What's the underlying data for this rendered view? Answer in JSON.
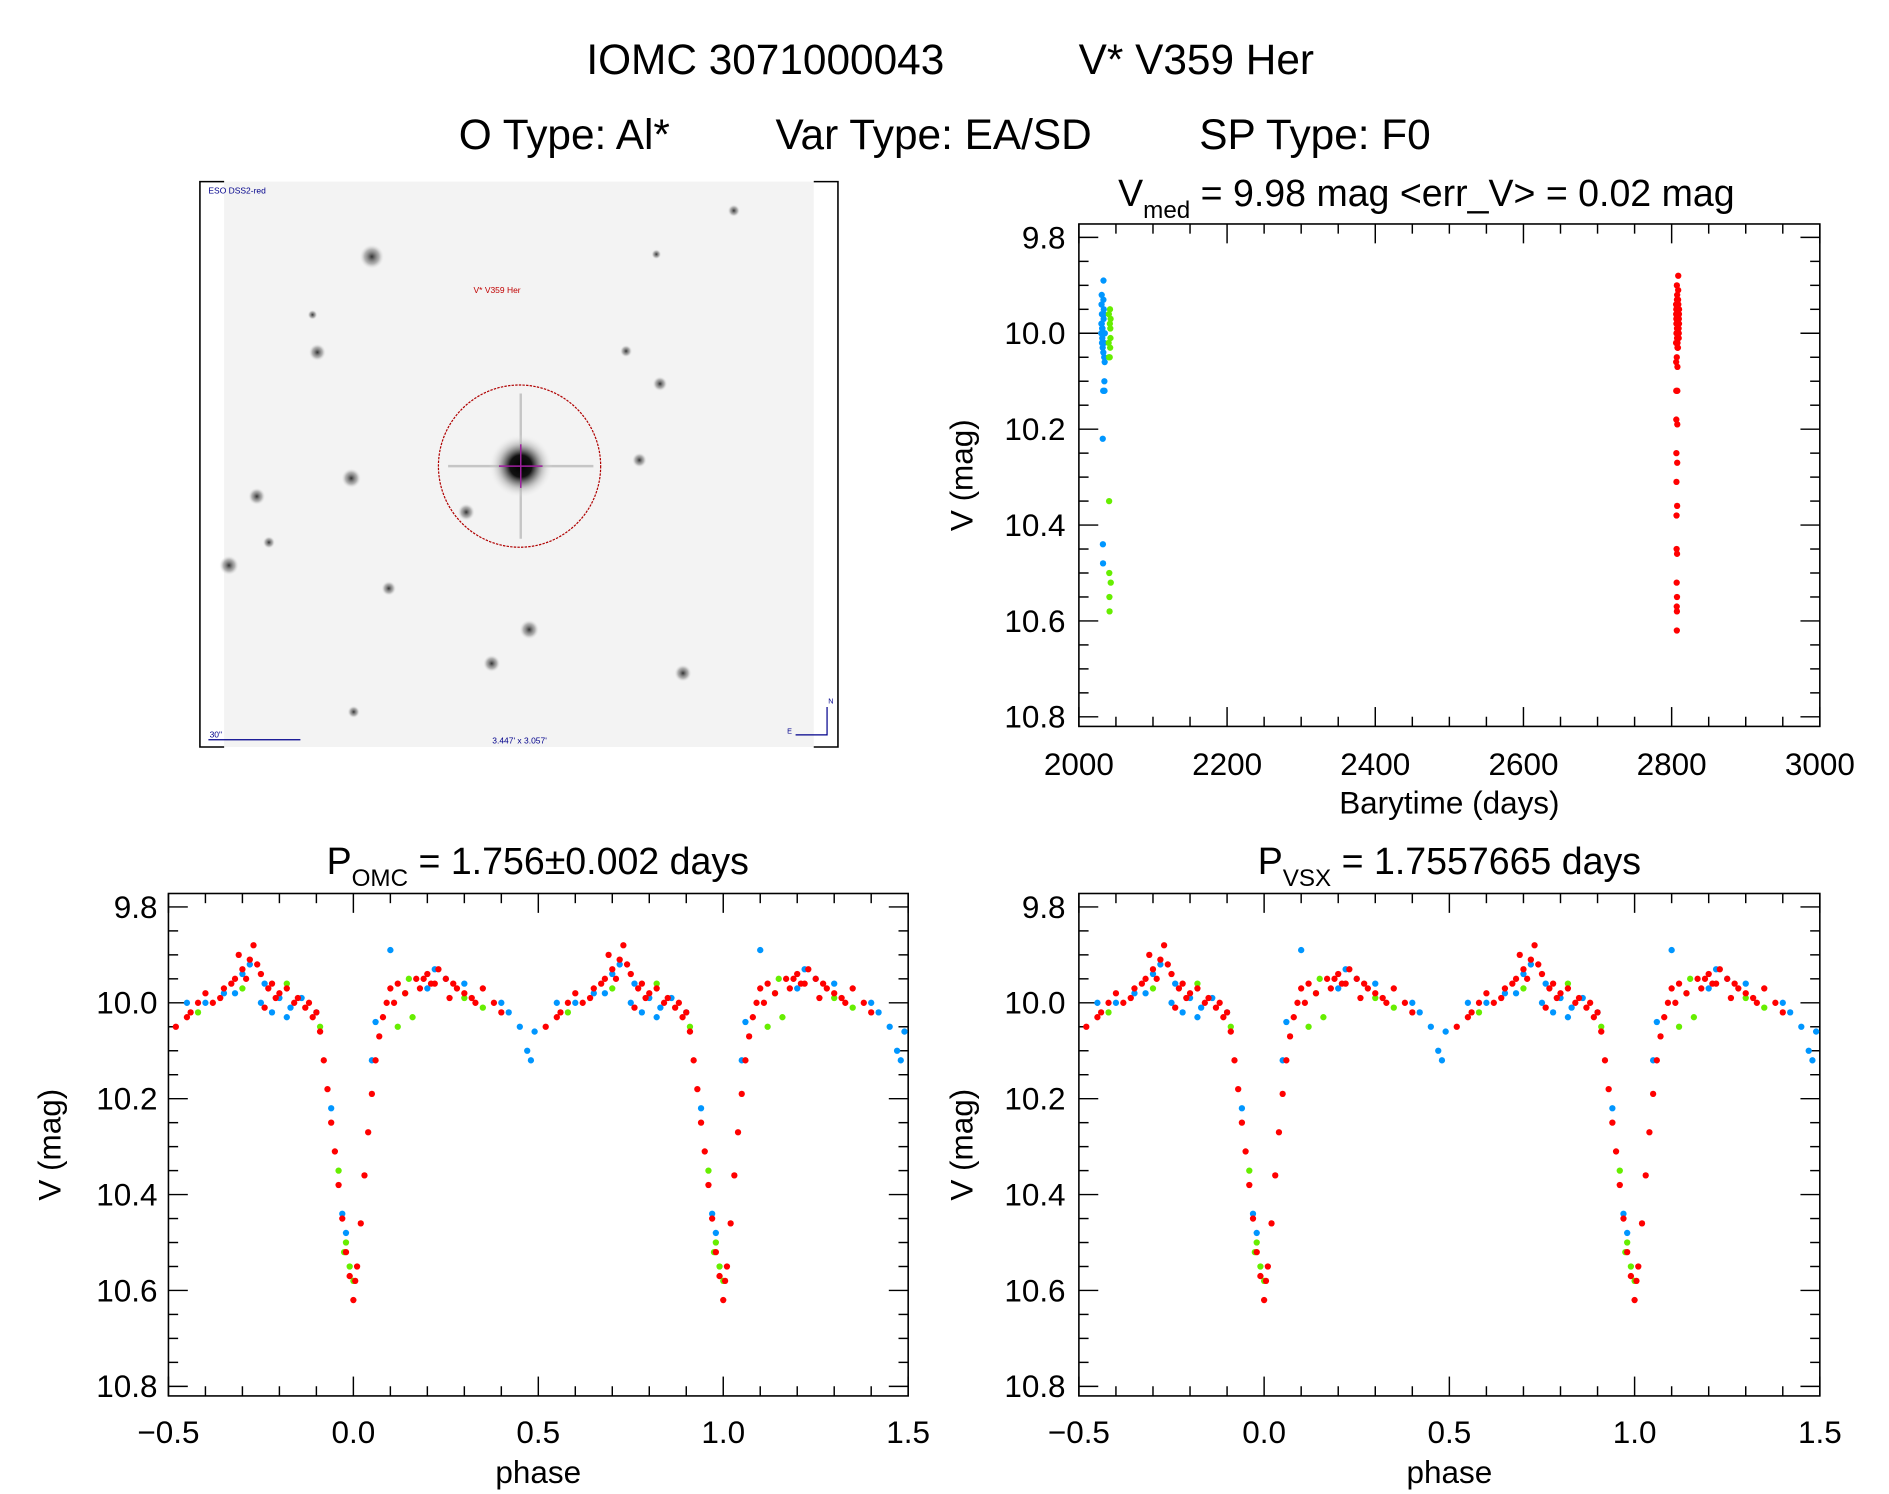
{
  "header": {
    "title_id": "IOMC 3071000043",
    "title_name": "V* V359 Her",
    "otype": "O Type: Al*",
    "vartype": "Var Type: EA/SD",
    "sptype": "SP Type: F0"
  },
  "finder": {
    "survey": "ESO DSS2-red",
    "target_label": "V* V359 Her",
    "scale_label": "30\"",
    "field_size": "3.447' x 3.057'",
    "north": "N",
    "east": "E"
  },
  "colors": {
    "camera1": "#0096ff",
    "camera2": "#66ee00",
    "camera3": "#ff0000"
  },
  "chart_data": [
    {
      "type": "scatter",
      "title_main": "V",
      "title_sub": "med",
      "title_rest": " = 9.98 mag <err_V> = 0.02 mag",
      "xlabel": "Barytime (days)",
      "ylabel": "V (mag)",
      "xlim": [
        2000,
        3000
      ],
      "ylim": [
        10.82,
        9.772
      ],
      "xticks": [
        "2000",
        "2200",
        "2400",
        "2600",
        "2800",
        "3000"
      ],
      "yticks": [
        "9.8",
        "10.0",
        "10.2",
        "10.4",
        "10.6",
        "10.8"
      ],
      "x_field": "t"
    },
    {
      "type": "scatter",
      "title_main": "P",
      "title_sub": "OMC",
      "title_rest": " = 1.756±0.002 days",
      "xlabel": "phase",
      "ylabel": "V (mag)",
      "xlim": [
        -0.5,
        1.5
      ],
      "ylim": [
        10.82,
        9.772
      ],
      "xticks": [
        "−0.5",
        "0.0",
        "0.5",
        "1.0",
        "1.5"
      ],
      "yticks": [
        "9.8",
        "10.0",
        "10.2",
        "10.4",
        "10.6",
        "10.8"
      ],
      "x_field": "phase"
    },
    {
      "type": "scatter",
      "title_main": "P",
      "title_sub": "VSX",
      "title_rest": " = 1.7557665 days",
      "xlabel": "phase",
      "ylabel": "V (mag)",
      "xlim": [
        -0.5,
        1.5
      ],
      "ylim": [
        10.82,
        9.772
      ],
      "xticks": [
        "−0.5",
        "0.0",
        "0.5",
        "1.0",
        "1.5"
      ],
      "yticks": [
        "9.8",
        "10.0",
        "10.2",
        "10.4",
        "10.6",
        "10.8"
      ],
      "x_field": "phase"
    }
  ],
  "observations": {
    "fields": [
      "t",
      "phase",
      "mag"
    ],
    "series": [
      {
        "name": "blue",
        "color_key": "camera1",
        "points": [
          [
            2030.2,
            -0.4,
            10.0
          ],
          [
            2030.4,
            -0.35,
            9.98
          ],
          [
            2030.6,
            -0.3,
            9.94
          ],
          [
            2030.8,
            -0.28,
            9.92
          ],
          [
            2031.0,
            -0.25,
            10.0
          ],
          [
            2031.2,
            -0.22,
            10.02
          ],
          [
            2031.4,
            -0.2,
            9.99
          ],
          [
            2031.6,
            -0.17,
            10.01
          ],
          [
            2031.8,
            -0.14,
            9.99
          ],
          [
            2032.0,
            -0.1,
            10.02
          ],
          [
            2032.2,
            -0.06,
            10.22
          ],
          [
            2032.4,
            -0.03,
            10.44
          ],
          [
            2032.6,
            -0.02,
            10.48
          ],
          [
            2032.8,
            0.05,
            10.12
          ],
          [
            2033.0,
            0.06,
            10.04
          ],
          [
            2033.2,
            0.1,
            9.89
          ],
          [
            2033.4,
            0.2,
            9.97
          ],
          [
            2033.6,
            0.25,
            9.95
          ],
          [
            2033.8,
            0.4,
            10.0
          ],
          [
            2034.0,
            0.42,
            10.02
          ],
          [
            2034.2,
            0.45,
            10.05
          ],
          [
            2034.4,
            0.47,
            10.1
          ],
          [
            2034.6,
            0.48,
            10.12
          ],
          [
            2034.8,
            0.49,
            10.06
          ],
          [
            2035.0,
            -0.45,
            10.0
          ],
          [
            2031.1,
            -0.24,
            9.96
          ],
          [
            2032.1,
            -0.18,
            10.03
          ],
          [
            2033.1,
            0.22,
            9.93
          ],
          [
            2033.5,
            0.3,
            9.96
          ],
          [
            2030.9,
            -0.32,
            9.98
          ]
        ]
      },
      {
        "name": "green",
        "color_key": "camera2",
        "points": [
          [
            2040.2,
            -0.42,
            10.02
          ],
          [
            2040.4,
            -0.18,
            9.96
          ],
          [
            2040.6,
            -0.09,
            10.05
          ],
          [
            2040.8,
            -0.04,
            10.35
          ],
          [
            2041.0,
            -0.02,
            10.5
          ],
          [
            2041.2,
            -0.01,
            10.55
          ],
          [
            2041.4,
            0.0,
            10.58
          ],
          [
            2041.6,
            0.12,
            10.05
          ],
          [
            2041.8,
            0.14,
            9.98
          ],
          [
            2042.0,
            0.15,
            9.95
          ],
          [
            2042.2,
            0.16,
            10.03
          ],
          [
            2042.4,
            0.3,
            9.99
          ],
          [
            2042.6,
            0.35,
            10.01
          ],
          [
            2042.8,
            -0.3,
            9.97
          ],
          [
            2043.0,
            -0.025,
            10.52
          ]
        ]
      },
      {
        "name": "red",
        "color_key": "camera3",
        "points": [
          [
            2806.0,
            -0.1,
            10.02
          ],
          [
            2806.1,
            -0.09,
            10.06
          ],
          [
            2806.2,
            -0.08,
            10.12
          ],
          [
            2806.3,
            -0.07,
            10.18
          ],
          [
            2806.4,
            -0.06,
            10.25
          ],
          [
            2806.5,
            -0.05,
            10.31
          ],
          [
            2806.6,
            -0.04,
            10.38
          ],
          [
            2806.7,
            -0.03,
            10.45
          ],
          [
            2806.8,
            -0.02,
            10.52
          ],
          [
            2806.9,
            -0.01,
            10.57
          ],
          [
            2807.0,
            0.0,
            10.62
          ],
          [
            2807.1,
            0.005,
            10.58
          ],
          [
            2807.2,
            0.01,
            10.55
          ],
          [
            2807.3,
            0.02,
            10.46
          ],
          [
            2807.4,
            0.03,
            10.36
          ],
          [
            2807.5,
            0.04,
            10.27
          ],
          [
            2807.6,
            0.05,
            10.19
          ],
          [
            2807.7,
            0.06,
            10.12
          ],
          [
            2807.8,
            0.07,
            10.07
          ],
          [
            2807.9,
            0.08,
            10.03
          ],
          [
            2808.0,
            0.09,
            10.0
          ],
          [
            2808.1,
            -0.45,
            10.03
          ],
          [
            2808.2,
            -0.42,
            10.0
          ],
          [
            2808.3,
            -0.4,
            9.98
          ],
          [
            2808.4,
            -0.38,
            10.0
          ],
          [
            2808.5,
            -0.35,
            9.97
          ],
          [
            2808.6,
            -0.32,
            9.95
          ],
          [
            2808.7,
            -0.3,
            9.93
          ],
          [
            2808.8,
            -0.28,
            9.91
          ],
          [
            2808.9,
            -0.27,
            9.88
          ],
          [
            2809.0,
            -0.25,
            9.94
          ],
          [
            2809.1,
            -0.22,
            9.96
          ],
          [
            2809.2,
            -0.2,
            9.98
          ],
          [
            2809.3,
            -0.18,
            9.97
          ],
          [
            2809.4,
            -0.15,
            9.99
          ],
          [
            2809.5,
            -0.13,
            10.01
          ],
          [
            2809.6,
            -0.12,
            10.0
          ],
          [
            2809.7,
            0.1,
            9.97
          ],
          [
            2809.8,
            0.12,
            9.96
          ],
          [
            2809.9,
            0.14,
            9.98
          ],
          [
            2810.0,
            0.17,
            9.95
          ],
          [
            2806.05,
            0.2,
            9.94
          ],
          [
            2806.15,
            0.22,
            9.96
          ],
          [
            2806.25,
            0.25,
            9.95
          ],
          [
            2806.35,
            0.28,
            9.97
          ],
          [
            2806.45,
            0.3,
            9.98
          ],
          [
            2806.55,
            0.33,
            10.0
          ],
          [
            2806.65,
            0.35,
            9.97
          ],
          [
            2806.75,
            0.38,
            10.0
          ],
          [
            2806.85,
            0.4,
            10.02
          ],
          [
            2806.95,
            -0.48,
            10.05
          ],
          [
            2807.05,
            -0.31,
            9.9
          ],
          [
            2807.15,
            0.23,
            9.93
          ],
          [
            2807.25,
            0.26,
            9.99
          ],
          [
            2807.35,
            -0.24,
            10.01
          ],
          [
            2807.45,
            -0.26,
            9.92
          ],
          [
            2807.55,
            -0.29,
            9.95
          ],
          [
            2807.65,
            -0.21,
            9.99
          ],
          [
            2807.75,
            0.18,
            9.97
          ],
          [
            2807.85,
            0.21,
            9.96
          ],
          [
            2807.95,
            -0.44,
            10.02
          ],
          [
            2808.05,
            -0.36,
            9.99
          ],
          [
            2808.15,
            -0.16,
            10.0
          ],
          [
            2808.25,
            0.27,
            9.96
          ],
          [
            2808.35,
            0.32,
            9.99
          ],
          [
            2808.45,
            -0.11,
            10.03
          ],
          [
            2808.55,
            0.11,
            10.0
          ],
          [
            2808.65,
            -0.33,
            9.96
          ],
          [
            2808.75,
            0.19,
            9.95
          ],
          [
            2808.85,
            -0.23,
            9.97
          ]
        ]
      }
    ]
  }
}
